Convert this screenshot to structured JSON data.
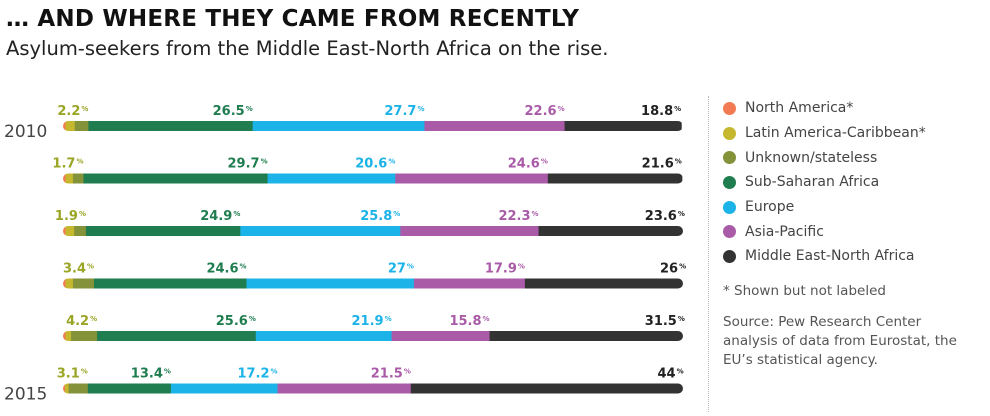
{
  "title": "… AND WHERE THEY CAME FROM RECENTLY",
  "subtitle": "Asylum-seekers from the Middle East-North Africa on the rise.",
  "footnote": "* Shown but not labeled",
  "source": "Source: Pew Research Center analysis of data from Eurostat, the EU’s statistical agency.",
  "legend": [
    {
      "label": "North America*",
      "color": "#f37b53"
    },
    {
      "label": "Latin America-Caribbean*",
      "color": "#c5b82e"
    },
    {
      "label": "Unknown/stateless",
      "color": "#84923a"
    },
    {
      "label": "Sub-Saharan Africa",
      "color": "#1f7d50"
    },
    {
      "label": "Europe",
      "color": "#1cb3e8"
    },
    {
      "label": "Asia-Pacific",
      "color": "#a95ba8"
    },
    {
      "label": "Middle East-North Africa",
      "color": "#333333"
    }
  ],
  "chart_data": {
    "type": "bar",
    "orientation": "horizontal",
    "stacked": true,
    "categories": [
      "2010",
      "",
      "",
      "",
      "",
      "2015"
    ],
    "unit": "%",
    "series": [
      {
        "name": "North America*",
        "color": "#f37b53",
        "values": [
          0.4,
          0.4,
          0.4,
          0.4,
          0.4,
          0.3
        ],
        "labels": [
          "",
          "",
          "",
          "",
          "",
          ""
        ]
      },
      {
        "name": "Latin America-Caribbean*",
        "color": "#c5b82e",
        "values": [
          1.5,
          1.2,
          1.4,
          1.2,
          0.9,
          0.6
        ],
        "labels": [
          "",
          "",
          "",
          "",
          "",
          ""
        ]
      },
      {
        "name": "Unknown/stateless",
        "color": "#84923a",
        "values": [
          2.2,
          1.7,
          1.9,
          3.4,
          4.2,
          3.1
        ],
        "labels": [
          "2.2",
          "1.7",
          "1.9",
          "3.4",
          "4.2",
          "3.1"
        ]
      },
      {
        "name": "Sub-Saharan Africa",
        "color": "#1f7d50",
        "values": [
          26.5,
          29.7,
          24.9,
          24.6,
          25.6,
          13.4
        ],
        "labels": [
          "26.5",
          "29.7",
          "24.9",
          "24.6",
          "25.6",
          "13.4"
        ]
      },
      {
        "name": "Europe",
        "color": "#1cb3e8",
        "values": [
          27.7,
          20.6,
          25.8,
          27,
          21.9,
          17.2
        ],
        "labels": [
          "27.7",
          "20.6",
          "25.8",
          "27",
          "21.9",
          "17.2"
        ]
      },
      {
        "name": "Asia-Pacific",
        "color": "#a95ba8",
        "values": [
          22.6,
          24.6,
          22.3,
          17.9,
          15.8,
          21.5
        ],
        "labels": [
          "22.6",
          "24.6",
          "22.3",
          "17.9",
          "15.8",
          "21.5"
        ]
      },
      {
        "name": "Middle East-North Africa",
        "color": "#333333",
        "values": [
          18.8,
          21.6,
          23.6,
          26,
          31.5,
          44
        ],
        "labels": [
          "18.8",
          "21.6",
          "23.6",
          "26",
          "31.5",
          "44"
        ]
      }
    ],
    "label_colors": {
      "Unknown/stateless": "#9aa524",
      "Sub-Saharan Africa": "#1f7d50",
      "Europe": "#1cb3e8",
      "Asia-Pacific": "#a95ba8",
      "Middle East-North Africa": "#222222"
    },
    "xlim": [
      0,
      100
    ]
  }
}
